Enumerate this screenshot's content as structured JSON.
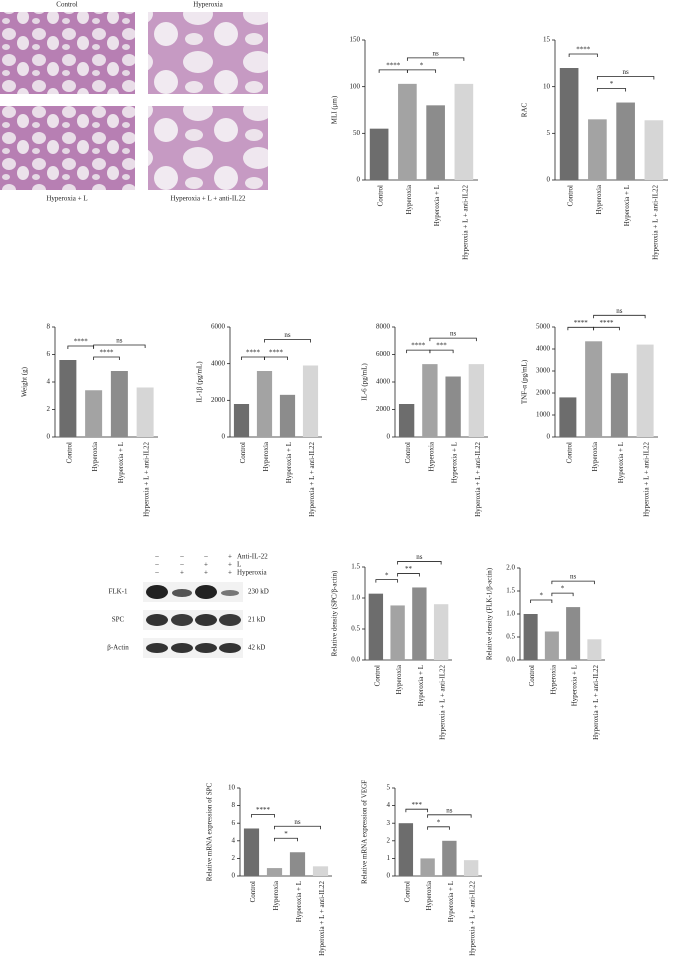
{
  "micrographs": {
    "labels": [
      "Control",
      "Hyperoxia",
      "Hyperoxia + L",
      "Hyperoxia + L + anti-IL22"
    ]
  },
  "western_blot": {
    "treatments": [
      {
        "name": "Anti-IL-22",
        "signs": [
          "–",
          "–",
          "–",
          "+"
        ]
      },
      {
        "name": "L",
        "signs": [
          "–",
          "–",
          "+",
          "+"
        ]
      },
      {
        "name": "Hyperoxia",
        "signs": [
          "–",
          "+",
          "+",
          "+"
        ]
      }
    ],
    "bands": [
      {
        "name": "FLK-1",
        "size": "230 kD"
      },
      {
        "name": "SPC",
        "size": "21 kD"
      },
      {
        "name": "β-Actin",
        "size": "42 kD"
      }
    ]
  },
  "chart_data": [
    {
      "type": "bar",
      "y_label": "MLI (μm)",
      "categories": [
        "Control",
        "Hyperoxia",
        "Hyperoxia + L",
        "Hyperoxia + L + anti-IL22"
      ],
      "values": [
        55,
        103,
        80,
        103
      ],
      "colors": [
        "#6d6d6d",
        "#a3a3a3",
        "#8c8c8c",
        "#d6d6d6"
      ],
      "ylim": [
        0,
        150
      ],
      "yticks": [
        0,
        50,
        100,
        150
      ],
      "annotations": [
        "****",
        "*",
        "ns"
      ]
    },
    {
      "type": "bar",
      "y_label": "RAC",
      "categories": [
        "Control",
        "Hyperoxia",
        "Hyperoxia + L",
        "Hyperoxia + L + anti-IL22"
      ],
      "values": [
        12,
        6.5,
        8.3,
        6.4
      ],
      "colors": [
        "#6d6d6d",
        "#a3a3a3",
        "#8c8c8c",
        "#d6d6d6"
      ],
      "ylim": [
        0,
        15
      ],
      "yticks": [
        0,
        5,
        10,
        15
      ],
      "annotations": [
        "****",
        "*",
        "ns"
      ]
    },
    {
      "type": "bar",
      "y_label": "Weight (g)",
      "categories": [
        "Control",
        "Hyperoxia",
        "Hyperoxia + L",
        "Hyperoxia + L + anti-IL22"
      ],
      "values": [
        5.6,
        3.4,
        4.8,
        3.6
      ],
      "colors": [
        "#6d6d6d",
        "#a3a3a3",
        "#8c8c8c",
        "#d6d6d6"
      ],
      "ylim": [
        0,
        8
      ],
      "yticks": [
        0,
        2,
        4,
        6,
        8
      ],
      "annotations": [
        "****",
        "****",
        "ns"
      ]
    },
    {
      "type": "bar",
      "y_label": "IL-1β (pg/mL)",
      "categories": [
        "Control",
        "Hyperoxia",
        "Hyperoxia + L",
        "Hyperoxia + L + anti-IL22"
      ],
      "values": [
        1800,
        3600,
        2300,
        3900
      ],
      "colors": [
        "#6d6d6d",
        "#a3a3a3",
        "#8c8c8c",
        "#d6d6d6"
      ],
      "ylim": [
        0,
        6000
      ],
      "yticks": [
        0,
        2000,
        4000,
        6000
      ],
      "annotations": [
        "****",
        "****",
        "ns"
      ]
    },
    {
      "type": "bar",
      "y_label": "IL-6 (pg/mL)",
      "categories": [
        "Control",
        "Hyperoxia",
        "Hyperoxia + L",
        "Hyperoxia + L + anti-IL22"
      ],
      "values": [
        2400,
        5300,
        4400,
        5300
      ],
      "colors": [
        "#6d6d6d",
        "#a3a3a3",
        "#8c8c8c",
        "#d6d6d6"
      ],
      "ylim": [
        0,
        8000
      ],
      "yticks": [
        0,
        2000,
        4000,
        6000,
        8000
      ],
      "annotations": [
        "****",
        "***",
        "ns"
      ]
    },
    {
      "type": "bar",
      "y_label": "TNF-α (pg/mL)",
      "categories": [
        "Control",
        "Hyperoxia",
        "Hyperoxia + L",
        "Hyperoxia + L + anti-IL22"
      ],
      "values": [
        1800,
        4350,
        2900,
        4200
      ],
      "colors": [
        "#6d6d6d",
        "#a3a3a3",
        "#8c8c8c",
        "#d6d6d6"
      ],
      "ylim": [
        0,
        5000
      ],
      "yticks": [
        0,
        1000,
        2000,
        3000,
        4000,
        5000
      ],
      "annotations": [
        "****",
        "****",
        "ns"
      ]
    },
    {
      "type": "bar",
      "y_label": "Relative density (SPC/β-actin)",
      "categories": [
        "Control",
        "Hyperoxia",
        "Hyperoxia + L",
        "Hyperoxia + L + anti-IL22"
      ],
      "values": [
        1.07,
        0.88,
        1.17,
        0.9
      ],
      "colors": [
        "#6d6d6d",
        "#a3a3a3",
        "#8c8c8c",
        "#d6d6d6"
      ],
      "ylim": [
        0,
        1.5
      ],
      "yticks": [
        {
          "value": 0,
          "label": "0.0"
        },
        0.5,
        {
          "value": 1,
          "label": "1.0"
        },
        1.5
      ],
      "annotations": [
        "*",
        "**",
        "ns"
      ]
    },
    {
      "type": "bar",
      "y_label": "Relative density (FLK-1/β-actin)",
      "categories": [
        "Control",
        "Hyperoxia",
        "Hyperoxia + L",
        "Hyperoxia + L + anti-IL22"
      ],
      "values": [
        1.0,
        0.62,
        1.15,
        0.45
      ],
      "colors": [
        "#6d6d6d",
        "#a3a3a3",
        "#8c8c8c",
        "#d6d6d6"
      ],
      "ylim": [
        0,
        2
      ],
      "yticks": [
        {
          "value": 0,
          "label": "0.0"
        },
        0.5,
        {
          "value": 1,
          "label": "1.0"
        },
        1.5,
        {
          "value": 2,
          "label": "2.0"
        }
      ],
      "annotations": [
        "*",
        "*",
        "ns"
      ]
    },
    {
      "type": "bar",
      "y_label": "Relative mRNA expression of SPC",
      "categories": [
        "Control",
        "Hyperoxia",
        "Hyperoxia + L",
        "Hyperoxia + L + anti-IL22"
      ],
      "values": [
        5.4,
        0.9,
        2.7,
        1.1
      ],
      "colors": [
        "#6d6d6d",
        "#a3a3a3",
        "#8c8c8c",
        "#d6d6d6"
      ],
      "ylim": [
        0,
        10
      ],
      "yticks": [
        0,
        2,
        4,
        6,
        8,
        10
      ],
      "annotations": [
        "****",
        "*",
        "ns"
      ]
    },
    {
      "type": "bar",
      "y_label": "Relative mRNA expression of VEGF",
      "categories": [
        "Control",
        "Hyperoxia",
        "Hyperoxia + L",
        "Hyperoxia + L + anti-IL22"
      ],
      "values": [
        3.0,
        1.0,
        2.0,
        0.9
      ],
      "colors": [
        "#6d6d6d",
        "#a3a3a3",
        "#8c8c8c",
        "#d6d6d6"
      ],
      "ylim": [
        0,
        5
      ],
      "yticks": [
        0,
        1,
        2,
        3,
        4,
        5
      ],
      "annotations": [
        "***",
        "*",
        "ns"
      ]
    }
  ]
}
